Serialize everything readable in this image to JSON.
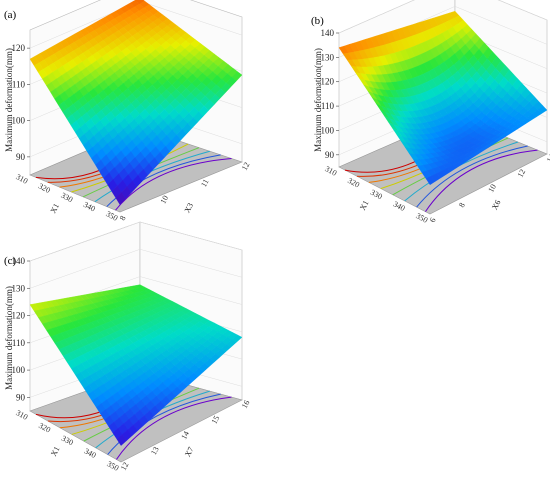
{
  "figure": {
    "panel_labels": [
      "(a)",
      "(b)",
      "(c)"
    ]
  },
  "chart_data": [
    {
      "type": "surface3d",
      "panel": "(a)",
      "zlabel": "Maximum deformation(mm)",
      "zticks": [
        90,
        100,
        110,
        120
      ],
      "x1_label": "X1",
      "x1_ticks": [
        310,
        320,
        330,
        340,
        350
      ],
      "x2_label": "X3",
      "x2_ticks": [
        8,
        10,
        11,
        12
      ],
      "corner_values": {
        "x1_min_x2_min": 117,
        "x1_min_x2_max": 121,
        "x1_max_x2_max": 109,
        "x1_max_x2_min": 87
      },
      "zlim": [
        85,
        125
      ],
      "contour_colors": [
        "#cc0000",
        "#dd3300",
        "#ee7700",
        "#cccc00",
        "#66cc44",
        "#22aacc",
        "#2255dd",
        "#6a00cc"
      ]
    },
    {
      "type": "surface3d",
      "panel": "(b)",
      "zlabel": "Maximum deformation(mm)",
      "zticks": [
        90,
        100,
        110,
        120,
        130,
        140
      ],
      "x1_label": "X1",
      "x1_ticks": [
        310,
        320,
        330,
        340,
        350
      ],
      "x2_label": "X6",
      "x2_ticks": [
        6,
        8,
        10,
        12,
        14
      ],
      "corner_values": {
        "x1_min_x2_min": 134,
        "x1_min_x2_max": 128,
        "x1_max_x2_max": 103,
        "x1_max_x2_min": 97
      },
      "center_value": 96,
      "zlim": [
        85,
        140
      ],
      "contour_colors": [
        "#cc0000",
        "#dd3300",
        "#ee7700",
        "#cccc00",
        "#66cc44",
        "#22aacc",
        "#2255dd",
        "#6a00cc"
      ]
    },
    {
      "type": "surface3d",
      "panel": "(c)",
      "zlabel": "Maximum deformation(mm)",
      "zticks": [
        90,
        100,
        110,
        120,
        130,
        140
      ],
      "x1_label": "X1",
      "x1_ticks": [
        310,
        320,
        330,
        340,
        350
      ],
      "x2_label": "X7",
      "x2_ticks": [
        12,
        13,
        14,
        15,
        16
      ],
      "corner_values": {
        "x1_min_x2_min": 124,
        "x1_min_x2_max": 117,
        "x1_max_x2_max": 108,
        "x1_max_x2_min": 91
      },
      "zlim": [
        85,
        140
      ],
      "contour_colors": [
        "#cc0000",
        "#dd3300",
        "#ee7700",
        "#cccc00",
        "#66cc44",
        "#22aacc",
        "#2255dd",
        "#6a00cc"
      ]
    }
  ]
}
